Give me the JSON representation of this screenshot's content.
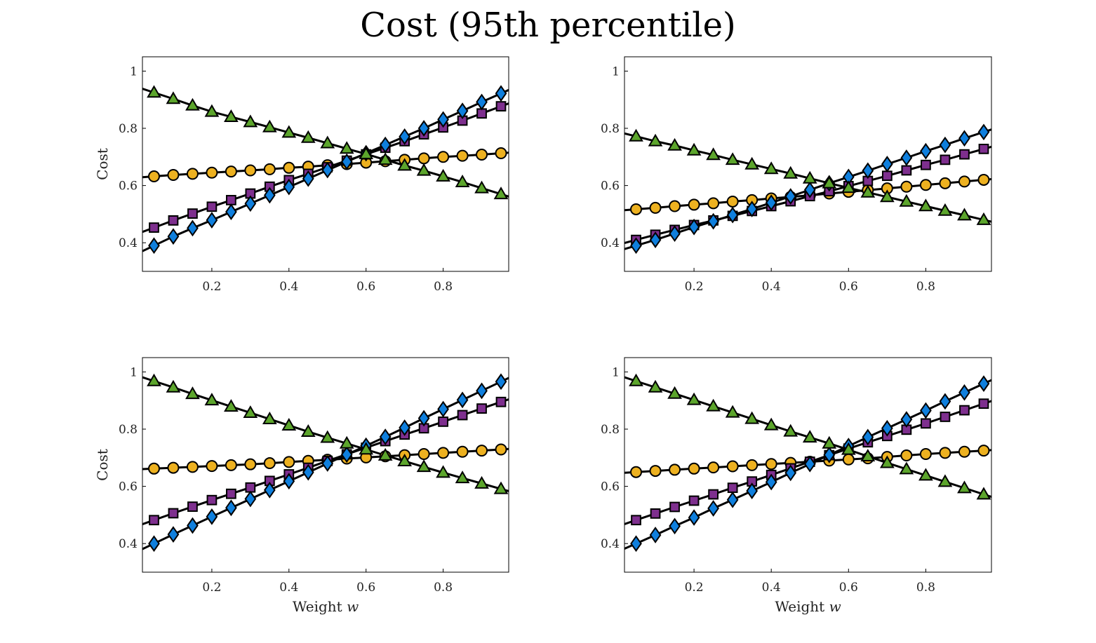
{
  "title": "Cost (95th percentile)",
  "colors": {
    "circle": "#EDB120",
    "square": "#7E2F8E",
    "diamond": "#0F7FDD",
    "triangle": "#5CA52C",
    "line": "#000000"
  },
  "chart_data": [
    {
      "type": "line",
      "panel": "top-left",
      "xlim": [
        0.02,
        0.97
      ],
      "ylim": [
        0.3,
        1.05
      ],
      "xticks": [
        0.2,
        0.4,
        0.6,
        0.8
      ],
      "yticks": [
        0.4,
        0.6,
        0.8,
        1
      ],
      "xtick_labels": [
        "0.2",
        "0.4",
        "0.6",
        "0.8"
      ],
      "ytick_labels": [
        "0.4",
        "0.6",
        "0.8",
        "1"
      ],
      "xlabel": "",
      "ylabel": "Cost",
      "grid": false,
      "x": [
        0.05,
        0.1,
        0.15,
        0.2,
        0.25,
        0.3,
        0.35,
        0.4,
        0.45,
        0.5,
        0.55,
        0.6,
        0.65,
        0.7,
        0.75,
        0.8,
        0.85,
        0.9,
        0.95
      ],
      "series": [
        {
          "marker": "circle",
          "values": [
            0.632,
            0.637,
            0.641,
            0.645,
            0.649,
            0.653,
            0.657,
            0.662,
            0.666,
            0.671,
            0.675,
            0.68,
            0.685,
            0.69,
            0.695,
            0.7,
            0.704,
            0.708,
            0.713
          ]
        },
        {
          "marker": "square",
          "values": [
            0.453,
            0.478,
            0.502,
            0.526,
            0.549,
            0.572,
            0.596,
            0.619,
            0.641,
            0.664,
            0.687,
            0.709,
            0.732,
            0.755,
            0.779,
            0.803,
            0.827,
            0.852,
            0.877
          ]
        },
        {
          "marker": "diamond",
          "values": [
            0.39,
            0.422,
            0.451,
            0.479,
            0.508,
            0.537,
            0.566,
            0.595,
            0.624,
            0.654,
            0.683,
            0.713,
            0.742,
            0.771,
            0.8,
            0.831,
            0.861,
            0.892,
            0.922
          ]
        },
        {
          "marker": "triangle",
          "values": [
            0.925,
            0.903,
            0.88,
            0.858,
            0.84,
            0.822,
            0.804,
            0.785,
            0.767,
            0.748,
            0.729,
            0.71,
            0.69,
            0.67,
            0.652,
            0.632,
            0.612,
            0.591,
            0.57
          ]
        }
      ]
    },
    {
      "type": "line",
      "panel": "top-right",
      "xlim": [
        0.02,
        0.97
      ],
      "ylim": [
        0.3,
        1.05
      ],
      "xticks": [
        0.2,
        0.4,
        0.6,
        0.8
      ],
      "yticks": [
        0.4,
        0.6,
        0.8,
        1
      ],
      "xtick_labels": [
        "0.2",
        "0.4",
        "0.6",
        "0.8"
      ],
      "ytick_labels": [
        "0.4",
        "0.6",
        "0.8",
        "1"
      ],
      "xlabel": "",
      "ylabel": "",
      "grid": false,
      "x": [
        0.05,
        0.1,
        0.15,
        0.2,
        0.25,
        0.3,
        0.35,
        0.4,
        0.45,
        0.5,
        0.55,
        0.6,
        0.65,
        0.7,
        0.75,
        0.8,
        0.85,
        0.9,
        0.95
      ],
      "series": [
        {
          "marker": "circle",
          "values": [
            0.517,
            0.522,
            0.528,
            0.533,
            0.538,
            0.544,
            0.549,
            0.555,
            0.56,
            0.566,
            0.572,
            0.578,
            0.584,
            0.59,
            0.596,
            0.602,
            0.608,
            0.614,
            0.62
          ]
        },
        {
          "marker": "square",
          "values": [
            0.41,
            0.428,
            0.445,
            0.462,
            0.478,
            0.494,
            0.511,
            0.528,
            0.545,
            0.563,
            0.58,
            0.598,
            0.616,
            0.634,
            0.653,
            0.672,
            0.69,
            0.709,
            0.728
          ]
        },
        {
          "marker": "diamond",
          "values": [
            0.39,
            0.41,
            0.432,
            0.455,
            0.475,
            0.497,
            0.518,
            0.54,
            0.562,
            0.585,
            0.608,
            0.63,
            0.652,
            0.675,
            0.697,
            0.72,
            0.742,
            0.765,
            0.787
          ]
        },
        {
          "marker": "triangle",
          "values": [
            0.772,
            0.755,
            0.74,
            0.723,
            0.707,
            0.69,
            0.674,
            0.658,
            0.642,
            0.625,
            0.608,
            0.592,
            0.576,
            0.56,
            0.544,
            0.528,
            0.512,
            0.496,
            0.48
          ]
        }
      ]
    },
    {
      "type": "line",
      "panel": "bottom-left",
      "xlim": [
        0.02,
        0.97
      ],
      "ylim": [
        0.3,
        1.05
      ],
      "xticks": [
        0.2,
        0.4,
        0.6,
        0.8
      ],
      "yticks": [
        0.4,
        0.6,
        0.8,
        1
      ],
      "xtick_labels": [
        "0.2",
        "0.4",
        "0.6",
        "0.8"
      ],
      "ytick_labels": [
        "0.4",
        "0.6",
        "0.8",
        "1"
      ],
      "xlabel": "Weight ",
      "xlabel_var": "w",
      "ylabel": "Cost",
      "grid": false,
      "x": [
        0.05,
        0.1,
        0.15,
        0.2,
        0.25,
        0.3,
        0.35,
        0.4,
        0.45,
        0.5,
        0.55,
        0.6,
        0.65,
        0.7,
        0.75,
        0.8,
        0.85,
        0.9,
        0.95
      ],
      "series": [
        {
          "marker": "circle",
          "values": [
            0.662,
            0.665,
            0.668,
            0.671,
            0.674,
            0.677,
            0.681,
            0.685,
            0.689,
            0.693,
            0.697,
            0.701,
            0.705,
            0.709,
            0.713,
            0.717,
            0.721,
            0.725,
            0.729
          ]
        },
        {
          "marker": "square",
          "values": [
            0.482,
            0.506,
            0.529,
            0.552,
            0.574,
            0.596,
            0.619,
            0.642,
            0.665,
            0.689,
            0.712,
            0.735,
            0.758,
            0.781,
            0.803,
            0.826,
            0.849,
            0.872,
            0.895
          ]
        },
        {
          "marker": "diamond",
          "values": [
            0.4,
            0.432,
            0.463,
            0.494,
            0.525,
            0.556,
            0.587,
            0.618,
            0.649,
            0.68,
            0.711,
            0.742,
            0.773,
            0.805,
            0.838,
            0.87,
            0.902,
            0.934,
            0.966
          ]
        },
        {
          "marker": "triangle",
          "values": [
            0.968,
            0.946,
            0.923,
            0.901,
            0.879,
            0.857,
            0.835,
            0.813,
            0.791,
            0.77,
            0.75,
            0.729,
            0.708,
            0.688,
            0.668,
            0.648,
            0.629,
            0.61,
            0.591
          ]
        }
      ]
    },
    {
      "type": "line",
      "panel": "bottom-right",
      "xlim": [
        0.02,
        0.97
      ],
      "ylim": [
        0.3,
        1.05
      ],
      "xticks": [
        0.2,
        0.4,
        0.6,
        0.8
      ],
      "yticks": [
        0.4,
        0.6,
        0.8,
        1
      ],
      "xtick_labels": [
        "0.2",
        "0.4",
        "0.6",
        "0.8"
      ],
      "ytick_labels": [
        "0.4",
        "0.6",
        "0.8",
        "1"
      ],
      "xlabel": "Weight ",
      "xlabel_var": "w",
      "ylabel": "",
      "grid": false,
      "x": [
        0.05,
        0.1,
        0.15,
        0.2,
        0.25,
        0.3,
        0.35,
        0.4,
        0.45,
        0.5,
        0.55,
        0.6,
        0.65,
        0.7,
        0.75,
        0.8,
        0.85,
        0.9,
        0.95
      ],
      "series": [
        {
          "marker": "circle",
          "values": [
            0.65,
            0.654,
            0.658,
            0.662,
            0.666,
            0.67,
            0.674,
            0.678,
            0.682,
            0.686,
            0.69,
            0.694,
            0.698,
            0.703,
            0.708,
            0.713,
            0.717,
            0.721,
            0.725
          ]
        },
        {
          "marker": "square",
          "values": [
            0.482,
            0.505,
            0.528,
            0.55,
            0.572,
            0.595,
            0.617,
            0.64,
            0.663,
            0.686,
            0.709,
            0.732,
            0.754,
            0.776,
            0.798,
            0.82,
            0.843,
            0.866,
            0.889
          ]
        },
        {
          "marker": "diamond",
          "values": [
            0.4,
            0.43,
            0.461,
            0.491,
            0.523,
            0.553,
            0.584,
            0.615,
            0.647,
            0.678,
            0.71,
            0.741,
            0.772,
            0.803,
            0.834,
            0.865,
            0.897,
            0.928,
            0.959
          ]
        },
        {
          "marker": "triangle",
          "values": [
            0.968,
            0.946,
            0.924,
            0.902,
            0.88,
            0.858,
            0.836,
            0.814,
            0.792,
            0.771,
            0.75,
            0.728,
            0.705,
            0.682,
            0.66,
            0.638,
            0.616,
            0.594,
            0.572
          ]
        }
      ]
    }
  ]
}
